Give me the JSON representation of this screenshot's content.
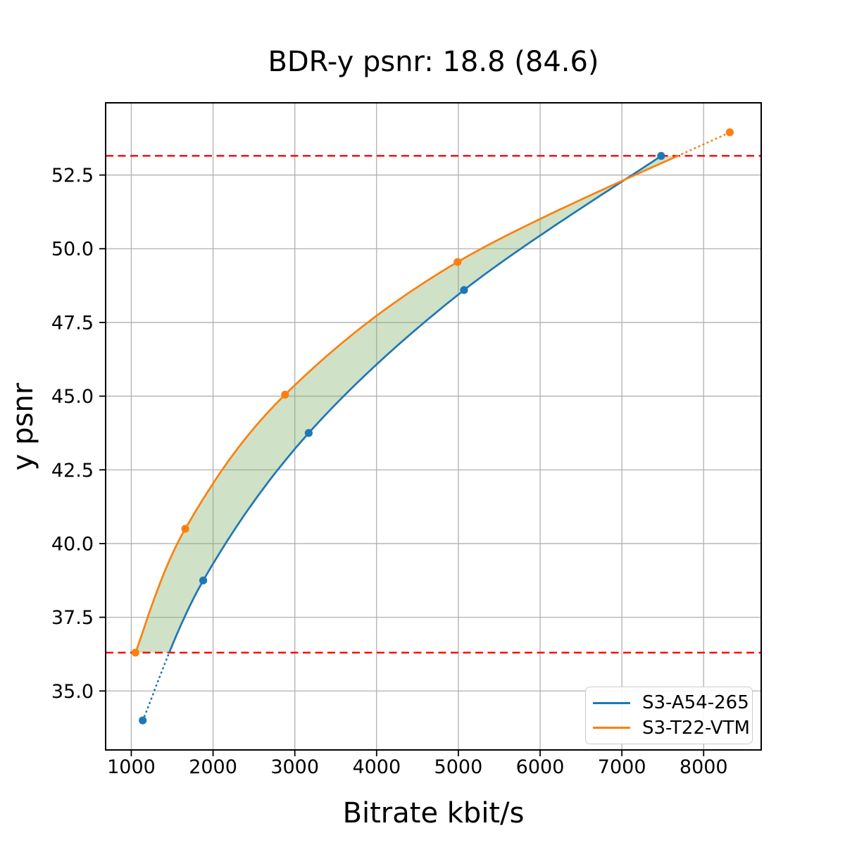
{
  "chart_data": {
    "type": "line",
    "title": "BDR-y psnr: 18.8 (84.6)",
    "xlabel": "Bitrate kbit/s",
    "ylabel": "y psnr",
    "xlim": [
      686,
      8704
    ],
    "ylim": [
      33.0,
      54.95
    ],
    "xticks": [
      1000,
      2000,
      3000,
      4000,
      5000,
      6000,
      7000,
      8000
    ],
    "yticks": [
      35.0,
      37.5,
      40.0,
      42.5,
      45.0,
      47.5,
      50.0,
      52.5
    ],
    "grid": true,
    "grid_color": "#b0b0b0",
    "legend": {
      "position": "lower right",
      "entries": [
        "S3-A54-265",
        "S3-T22-VTM"
      ]
    },
    "series": [
      {
        "name": "S3-A54-265",
        "color": "#1f77b4",
        "points": [
          [
            1140,
            34.0
          ],
          [
            1880,
            38.75
          ],
          [
            3170,
            43.75
          ],
          [
            5070,
            48.6
          ],
          [
            7480,
            53.15
          ]
        ]
      },
      {
        "name": "S3-T22-VTM",
        "color": "#ff7f0e",
        "points": [
          [
            1050,
            36.3
          ],
          [
            1660,
            40.5
          ],
          [
            2880,
            45.05
          ],
          [
            4990,
            49.55
          ],
          [
            8320,
            53.95
          ]
        ]
      }
    ],
    "overlap_hlines": {
      "values": [
        36.3,
        53.15
      ],
      "color": "#ff0000",
      "style": "dashed"
    },
    "fill_between": {
      "between": [
        "S3-T22-VTM",
        "S3-A54-265"
      ],
      "y_range": [
        36.3,
        53.15
      ],
      "color_rgba": "rgba(130,175,105,0.38)"
    }
  }
}
